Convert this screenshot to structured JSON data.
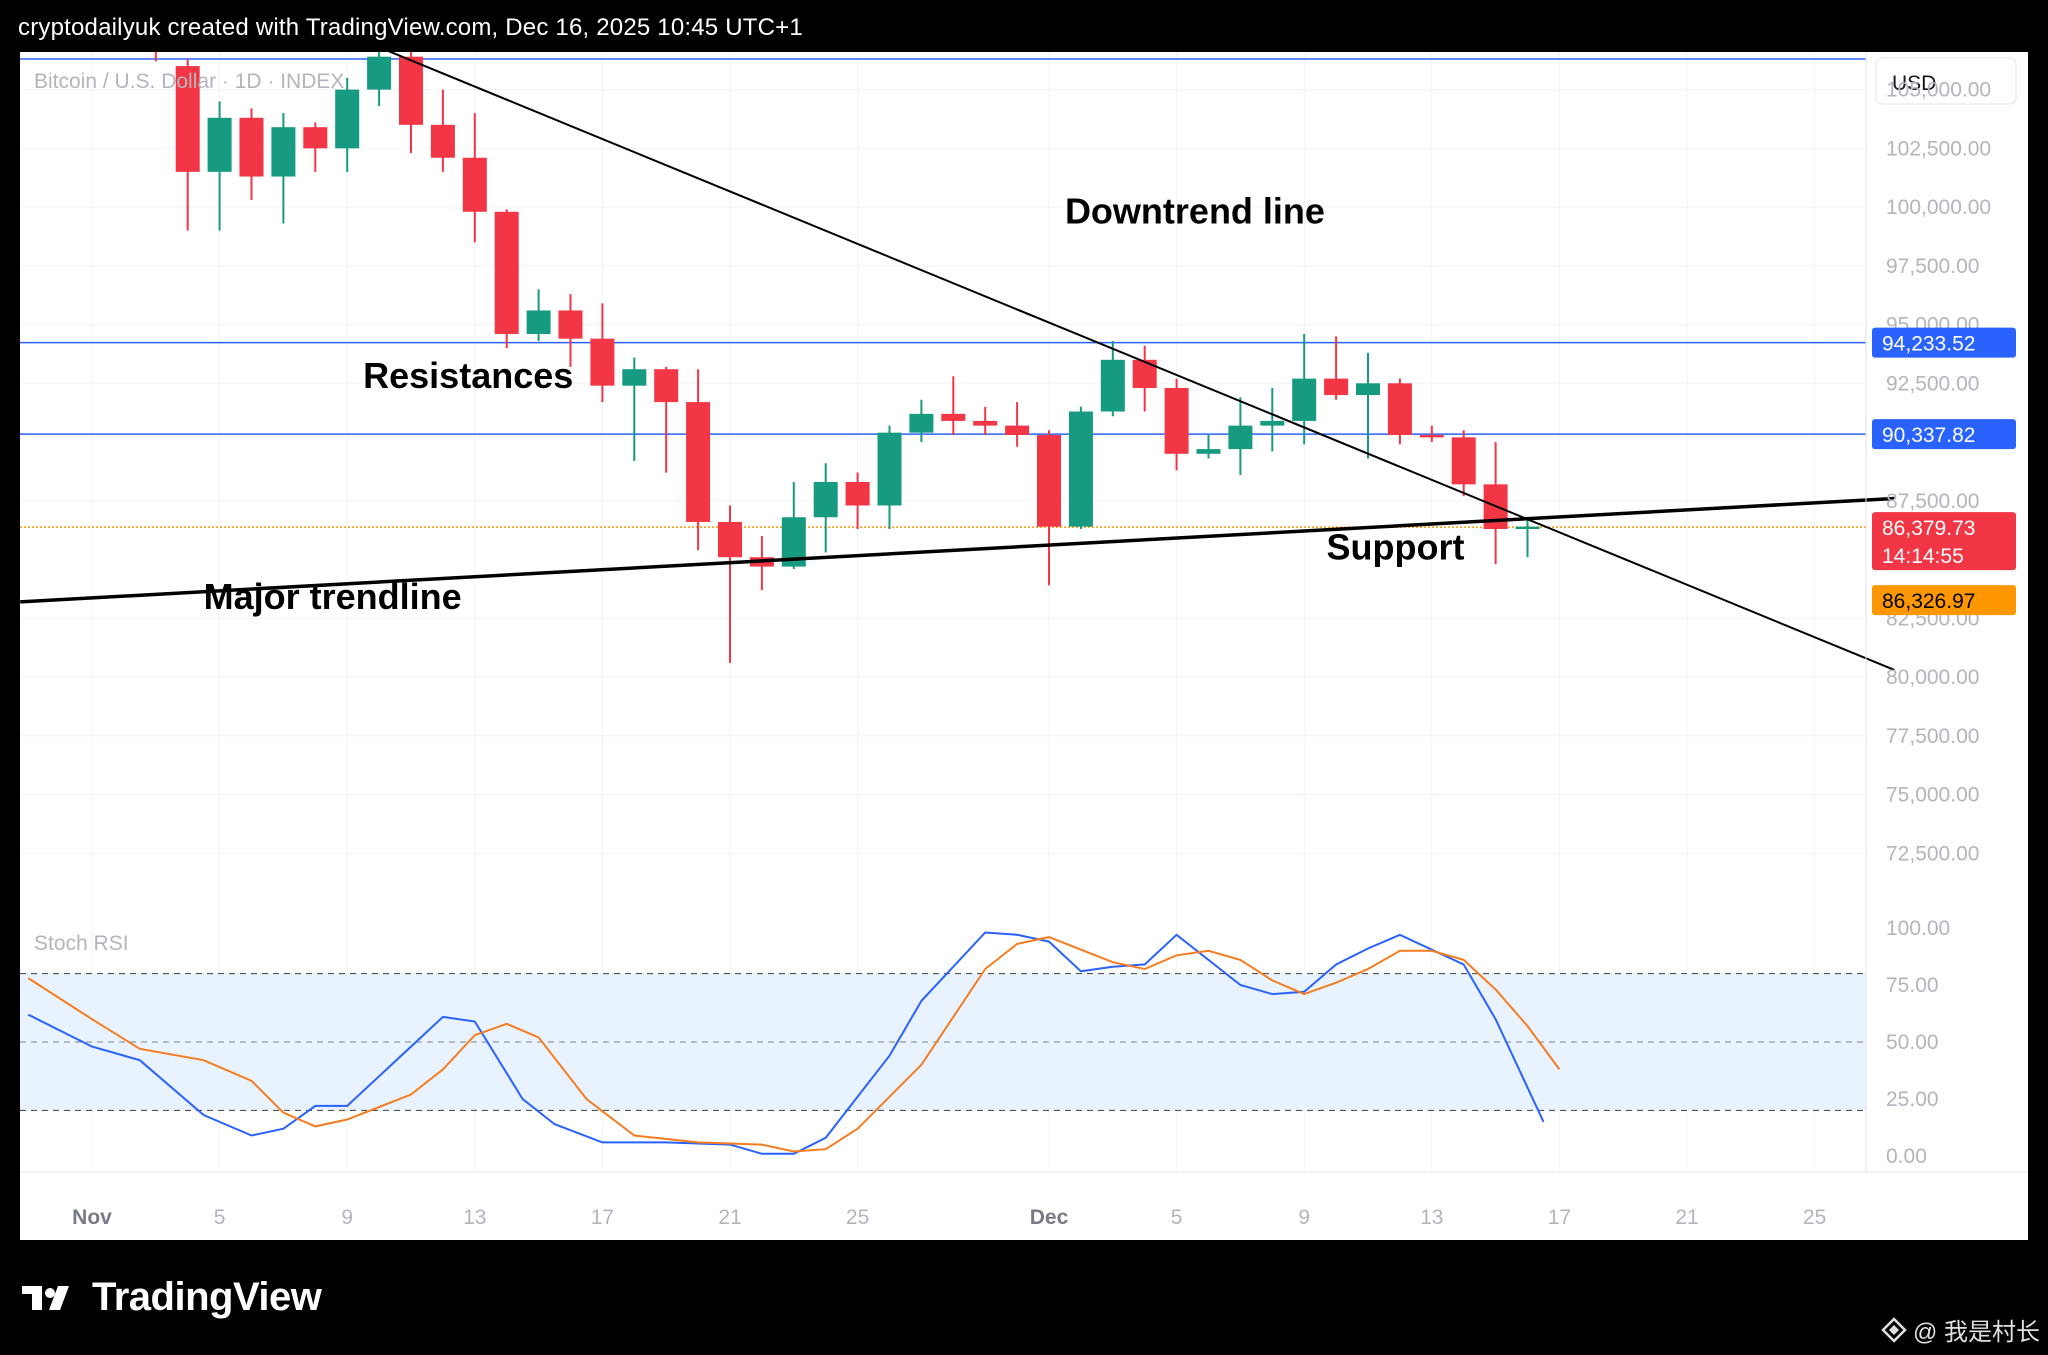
{
  "header": {
    "title": "cryptodailyuk created with TradingView.com, Dec 16, 2025 10:45 UTC+1"
  },
  "footer": {
    "brand": "TradingView",
    "watermark": "@ 我是村长"
  },
  "colors": {
    "up": "#169a80",
    "down": "#f23645",
    "resistance": "#2962ff",
    "price": "#f23645",
    "bid": "#ff9800",
    "stochK": "#2962ff",
    "stochD": "#f57c1f"
  },
  "chart_data": [
    {
      "type": "candlestick",
      "title": "Bitcoin / U.S. Dollar · 1D · INDEX",
      "currency": "USD",
      "ylim": [
        70000,
        106600
      ],
      "x_ticks": [
        {
          "label": "Nov",
          "day": 0
        },
        {
          "label": "5",
          "day": 4
        },
        {
          "label": "9",
          "day": 8
        },
        {
          "label": "13",
          "day": 12
        },
        {
          "label": "17",
          "day": 16
        },
        {
          "label": "21",
          "day": 20
        },
        {
          "label": "25",
          "day": 24
        },
        {
          "label": "Dec",
          "day": 30
        },
        {
          "label": "5",
          "day": 34
        },
        {
          "label": "9",
          "day": 38
        },
        {
          "label": "13",
          "day": 42
        },
        {
          "label": "17",
          "day": 46
        },
        {
          "label": "21",
          "day": 50
        },
        {
          "label": "25",
          "day": 54
        }
      ],
      "y_ticks": [
        "105,000.00",
        "102,500.00",
        "100,000.00",
        "97,500.00",
        "95,000.00",
        "92,500.00",
        "87,500.00",
        "82,500.00",
        "80,000.00",
        "77,500.00",
        "75,000.00",
        "72,500.00"
      ],
      "y_tick_values": [
        105000,
        102500,
        100000,
        97500,
        95000,
        92500,
        87500,
        82500,
        80000,
        77500,
        75000,
        72500
      ],
      "candles": [
        {
          "day": 2,
          "o": 107800,
          "h": 108500,
          "l": 106200,
          "c": 106800
        },
        {
          "day": 3,
          "o": 106000,
          "h": 106300,
          "l": 99000,
          "c": 101500
        },
        {
          "day": 4,
          "o": 101500,
          "h": 104500,
          "l": 99000,
          "c": 103800
        },
        {
          "day": 5,
          "o": 103800,
          "h": 104200,
          "l": 100300,
          "c": 101300
        },
        {
          "day": 6,
          "o": 101300,
          "h": 104000,
          "l": 99300,
          "c": 103400
        },
        {
          "day": 7,
          "o": 103400,
          "h": 103600,
          "l": 101500,
          "c": 102500
        },
        {
          "day": 8,
          "o": 102500,
          "h": 105500,
          "l": 101500,
          "c": 105000
        },
        {
          "day": 9,
          "o": 105000,
          "h": 107000,
          "l": 104300,
          "c": 106400
        },
        {
          "day": 10,
          "o": 106400,
          "h": 107700,
          "l": 102300,
          "c": 103500
        },
        {
          "day": 11,
          "o": 103500,
          "h": 105000,
          "l": 101500,
          "c": 102100
        },
        {
          "day": 12,
          "o": 102100,
          "h": 104000,
          "l": 98500,
          "c": 99800
        },
        {
          "day": 13,
          "o": 99800,
          "h": 99900,
          "l": 94000,
          "c": 94600
        },
        {
          "day": 14,
          "o": 94600,
          "h": 96500,
          "l": 94300,
          "c": 95600
        },
        {
          "day": 15,
          "o": 95600,
          "h": 96300,
          "l": 93200,
          "c": 94400
        },
        {
          "day": 16,
          "o": 94400,
          "h": 95900,
          "l": 91700,
          "c": 92400
        },
        {
          "day": 17,
          "o": 92400,
          "h": 93600,
          "l": 89200,
          "c": 93100
        },
        {
          "day": 18,
          "o": 93100,
          "h": 93200,
          "l": 88700,
          "c": 91700
        },
        {
          "day": 19,
          "o": 91700,
          "h": 93100,
          "l": 85400,
          "c": 86600
        },
        {
          "day": 20,
          "o": 86600,
          "h": 87300,
          "l": 80600,
          "c": 85100
        },
        {
          "day": 21,
          "o": 85100,
          "h": 86000,
          "l": 83700,
          "c": 84700
        },
        {
          "day": 22,
          "o": 84700,
          "h": 88300,
          "l": 84600,
          "c": 86800
        },
        {
          "day": 23,
          "o": 86800,
          "h": 89100,
          "l": 85300,
          "c": 88300
        },
        {
          "day": 24,
          "o": 88300,
          "h": 88700,
          "l": 86300,
          "c": 87300
        },
        {
          "day": 25,
          "o": 87300,
          "h": 90700,
          "l": 86300,
          "c": 90400
        },
        {
          "day": 26,
          "o": 90400,
          "h": 91800,
          "l": 90000,
          "c": 91200
        },
        {
          "day": 27,
          "o": 91200,
          "h": 92800,
          "l": 90300,
          "c": 90900
        },
        {
          "day": 28,
          "o": 90900,
          "h": 91500,
          "l": 90300,
          "c": 90700
        },
        {
          "day": 29,
          "o": 90700,
          "h": 91700,
          "l": 89800,
          "c": 90300
        },
        {
          "day": 30,
          "o": 90300,
          "h": 90500,
          "l": 83900,
          "c": 86400
        },
        {
          "day": 31,
          "o": 86400,
          "h": 91500,
          "l": 86300,
          "c": 91300
        },
        {
          "day": 32,
          "o": 91300,
          "h": 94300,
          "l": 91100,
          "c": 93500
        },
        {
          "day": 33,
          "o": 93500,
          "h": 94100,
          "l": 91300,
          "c": 92300
        },
        {
          "day": 34,
          "o": 92300,
          "h": 92700,
          "l": 88800,
          "c": 89500
        },
        {
          "day": 35,
          "o": 89500,
          "h": 90300,
          "l": 89300,
          "c": 89700
        },
        {
          "day": 36,
          "o": 89700,
          "h": 91900,
          "l": 88600,
          "c": 90700
        },
        {
          "day": 37,
          "o": 90700,
          "h": 92300,
          "l": 89600,
          "c": 90900
        },
        {
          "day": 38,
          "o": 90900,
          "h": 94600,
          "l": 89900,
          "c": 92700
        },
        {
          "day": 39,
          "o": 92700,
          "h": 94500,
          "l": 91800,
          "c": 92000
        },
        {
          "day": 40,
          "o": 92000,
          "h": 93800,
          "l": 89300,
          "c": 92500
        },
        {
          "day": 41,
          "o": 92500,
          "h": 92700,
          "l": 89900,
          "c": 90300
        },
        {
          "day": 42,
          "o": 90300,
          "h": 90700,
          "l": 90000,
          "c": 90200
        },
        {
          "day": 43,
          "o": 90200,
          "h": 90500,
          "l": 87700,
          "c": 88200
        },
        {
          "day": 44,
          "o": 88200,
          "h": 90000,
          "l": 84800,
          "c": 86300
        },
        {
          "day": 45,
          "o": 86300,
          "h": 86800,
          "l": 85100,
          "c": 86400
        }
      ],
      "resistance_levels": [
        {
          "price": 94233.52,
          "label": "94,233.52"
        },
        {
          "price": 90337.82,
          "label": "90,337.82"
        }
      ],
      "top_reference_level": 106300,
      "current_price": {
        "price": 86379.73,
        "label": "86,379.73",
        "countdown": "14:14:55"
      },
      "bid_price": {
        "price": 86326.97,
        "label": "86,326.97"
      },
      "trendlines": [
        {
          "name": "downtrend",
          "from": {
            "day": 7.75,
            "price": 107500
          },
          "to": {
            "day": 56.5,
            "price": 80300
          }
        },
        {
          "name": "major",
          "from": {
            "day": -2.25,
            "price": 83200
          },
          "to": {
            "day": 56.5,
            "price": 87600
          }
        }
      ],
      "annotations": [
        {
          "text": "Downtrend line",
          "day": 30.5,
          "price": 99300
        },
        {
          "text": "Resistances",
          "day": 8.5,
          "price": 92300
        },
        {
          "text": "Support",
          "day": 38.7,
          "price": 85000
        },
        {
          "text": "Major trendline",
          "day": 3.5,
          "price": 82900
        }
      ]
    },
    {
      "type": "line",
      "title": "Stoch RSI",
      "ylim": [
        -7,
        107
      ],
      "y_ticks": [
        "100.00",
        "75.00",
        "50.00",
        "25.00",
        "0.00"
      ],
      "y_tick_values": [
        100,
        75,
        50,
        25,
        0
      ],
      "band": [
        20,
        80
      ],
      "series": [
        {
          "name": "K",
          "values": [
            [
              -2,
              62
            ],
            [
              0,
              48
            ],
            [
              1.5,
              42
            ],
            [
              3.5,
              18
            ],
            [
              5,
              9
            ],
            [
              6,
              12
            ],
            [
              7,
              22
            ],
            [
              8,
              22
            ],
            [
              10,
              48
            ],
            [
              11,
              61
            ],
            [
              12,
              59
            ],
            [
              13.5,
              25
            ],
            [
              14.5,
              14
            ],
            [
              16,
              6
            ],
            [
              18,
              6
            ],
            [
              20,
              5
            ],
            [
              21,
              1
            ],
            [
              22,
              1
            ],
            [
              23,
              8
            ],
            [
              25,
              44
            ],
            [
              26,
              68
            ],
            [
              28,
              98
            ],
            [
              29,
              97
            ],
            [
              30,
              94
            ],
            [
              31,
              81
            ],
            [
              32,
              83
            ],
            [
              33,
              84
            ],
            [
              34,
              97
            ],
            [
              36,
              75
            ],
            [
              37,
              71
            ],
            [
              38,
              72
            ],
            [
              39,
              84
            ],
            [
              40,
              91
            ],
            [
              41,
              97
            ],
            [
              43,
              84
            ],
            [
              44,
              60
            ],
            [
              45.5,
              15
            ]
          ]
        },
        {
          "name": "D",
          "values": [
            [
              -2,
              78
            ],
            [
              0,
              60
            ],
            [
              1.5,
              47
            ],
            [
              3.5,
              42
            ],
            [
              5,
              33
            ],
            [
              6,
              19
            ],
            [
              7,
              13
            ],
            [
              8,
              16
            ],
            [
              10,
              27
            ],
            [
              11,
              38
            ],
            [
              12,
              53
            ],
            [
              13,
              58
            ],
            [
              14,
              52
            ],
            [
              15.5,
              25
            ],
            [
              17,
              9
            ],
            [
              19,
              6
            ],
            [
              21,
              5
            ],
            [
              22,
              2
            ],
            [
              23,
              3
            ],
            [
              24,
              12
            ],
            [
              26,
              40
            ],
            [
              28,
              82
            ],
            [
              29,
              93
            ],
            [
              30,
              96
            ],
            [
              32,
              85
            ],
            [
              33,
              82
            ],
            [
              34,
              88
            ],
            [
              35,
              90
            ],
            [
              36,
              86
            ],
            [
              37,
              77
            ],
            [
              38,
              71
            ],
            [
              39,
              76
            ],
            [
              40,
              82
            ],
            [
              41,
              90
            ],
            [
              42,
              90
            ],
            [
              43,
              86
            ],
            [
              44,
              73
            ],
            [
              45,
              57
            ],
            [
              46,
              38
            ]
          ]
        }
      ]
    }
  ]
}
